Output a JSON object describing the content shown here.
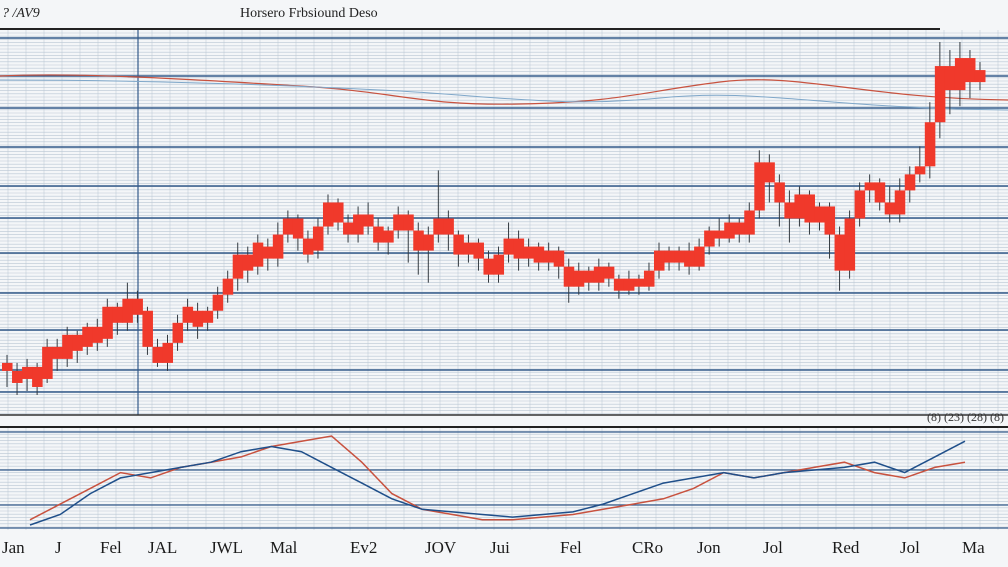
{
  "header": {
    "corner_label": "? /AV9",
    "title": "Horsero Frbsiound Deso"
  },
  "readout": "(8) (23) (28) (8)",
  "colors": {
    "background": "#f4f6f8",
    "grid": "#b9c6d3",
    "rule": "#355b8a",
    "candle": "#f0392b",
    "wick": "#333a40",
    "ma_red": "#c8523f",
    "ma_blue": "#1f4f8a"
  },
  "chart_data": [
    {
      "type": "candlestick",
      "title": "Horsero Frbsiound Deso",
      "grid": true,
      "y_axis_labels": false,
      "candles": [
        [
          10,
          8,
          4,
          12
        ],
        [
          8,
          5,
          2,
          10
        ],
        [
          6,
          9,
          3,
          11
        ],
        [
          9,
          4,
          2,
          10
        ],
        [
          6,
          14,
          5,
          16
        ],
        [
          14,
          11,
          8,
          16
        ],
        [
          11,
          17,
          9,
          19
        ],
        [
          17,
          13,
          10,
          18
        ],
        [
          14,
          19,
          12,
          20
        ],
        [
          19,
          15,
          13,
          21
        ],
        [
          16,
          24,
          14,
          26
        ],
        [
          24,
          20,
          17,
          25
        ],
        [
          20,
          26,
          18,
          30
        ],
        [
          26,
          22,
          20,
          28
        ],
        [
          23,
          14,
          12,
          24
        ],
        [
          14,
          10,
          9,
          16
        ],
        [
          10,
          15,
          8,
          17
        ],
        [
          15,
          20,
          13,
          22
        ],
        [
          20,
          24,
          18,
          26
        ],
        [
          23,
          19,
          16,
          25
        ],
        [
          20,
          23,
          18,
          24
        ],
        [
          23,
          27,
          21,
          29
        ],
        [
          27,
          31,
          25,
          33
        ],
        [
          31,
          37,
          28,
          40
        ],
        [
          37,
          33,
          30,
          39
        ],
        [
          34,
          40,
          32,
          42
        ],
        [
          39,
          36,
          33,
          41
        ],
        [
          36,
          42,
          34,
          45
        ],
        [
          42,
          46,
          40,
          48
        ],
        [
          46,
          41,
          38,
          47
        ],
        [
          41,
          37,
          35,
          43
        ],
        [
          38,
          44,
          36,
          46
        ],
        [
          44,
          50,
          42,
          52
        ],
        [
          50,
          45,
          43,
          51
        ],
        [
          45,
          42,
          40,
          47
        ],
        [
          42,
          47,
          40,
          49
        ],
        [
          47,
          44,
          42,
          50
        ],
        [
          44,
          40,
          38,
          46
        ],
        [
          40,
          43,
          37,
          44
        ],
        [
          43,
          47,
          41,
          49
        ],
        [
          47,
          43,
          35,
          48
        ],
        [
          43,
          38,
          32,
          45
        ],
        [
          38,
          42,
          30,
          44
        ],
        [
          42,
          46,
          40,
          58
        ],
        [
          46,
          42,
          38,
          48
        ],
        [
          42,
          37,
          34,
          43
        ],
        [
          37,
          40,
          35,
          42
        ],
        [
          40,
          36,
          33,
          41
        ],
        [
          36,
          32,
          30,
          38
        ],
        [
          32,
          37,
          30,
          39
        ],
        [
          37,
          41,
          35,
          45
        ],
        [
          41,
          36,
          33,
          43
        ],
        [
          36,
          39,
          34,
          41
        ],
        [
          39,
          35,
          33,
          40
        ],
        [
          35,
          38,
          33,
          40
        ],
        [
          38,
          34,
          31,
          39
        ],
        [
          34,
          29,
          25,
          36
        ],
        [
          29,
          33,
          27,
          35
        ],
        [
          33,
          30,
          28,
          34
        ],
        [
          30,
          34,
          28,
          36
        ],
        [
          34,
          31,
          29,
          35
        ],
        [
          31,
          28,
          26,
          32
        ],
        [
          28,
          31,
          27,
          33
        ],
        [
          31,
          29,
          27,
          32
        ],
        [
          29,
          33,
          28,
          35
        ],
        [
          33,
          38,
          31,
          40
        ],
        [
          38,
          35,
          33,
          39
        ],
        [
          35,
          38,
          33,
          39
        ],
        [
          38,
          34,
          32,
          40
        ],
        [
          34,
          39,
          33,
          41
        ],
        [
          39,
          43,
          37,
          44
        ],
        [
          43,
          41,
          39,
          46
        ],
        [
          41,
          45,
          40,
          47
        ],
        [
          45,
          42,
          40,
          46
        ],
        [
          42,
          48,
          40,
          50
        ],
        [
          48,
          60,
          46,
          63
        ],
        [
          60,
          55,
          50,
          62
        ],
        [
          55,
          50,
          44,
          57
        ],
        [
          50,
          46,
          40,
          53
        ],
        [
          46,
          52,
          44,
          54
        ],
        [
          52,
          45,
          42,
          53
        ],
        [
          45,
          49,
          43,
          50
        ],
        [
          49,
          42,
          36,
          50
        ],
        [
          42,
          33,
          28,
          44
        ],
        [
          33,
          46,
          31,
          48
        ],
        [
          46,
          53,
          44,
          55
        ],
        [
          53,
          55,
          50,
          57
        ],
        [
          55,
          50,
          48,
          56
        ],
        [
          50,
          47,
          45,
          54
        ],
        [
          47,
          53,
          45,
          56
        ],
        [
          53,
          57,
          50,
          59
        ],
        [
          57,
          59,
          55,
          64
        ],
        [
          59,
          70,
          56,
          75
        ],
        [
          70,
          84,
          66,
          90
        ],
        [
          84,
          78,
          72,
          88
        ],
        [
          78,
          86,
          74,
          90
        ],
        [
          86,
          80,
          76,
          88
        ],
        [
          80,
          83,
          78,
          85
        ]
      ]
    },
    {
      "type": "line",
      "grid": true,
      "x_labels": [
        "Jan",
        "J",
        "Fel",
        "JAL",
        "JWL",
        "Mal",
        "Ev2",
        "JOV",
        "Jui",
        "Fel",
        "CRo",
        "Jon",
        "Jol",
        "Red",
        "Jol",
        "Ma"
      ],
      "series": [
        {
          "color": "#c8523f",
          "values": [
            8,
            14,
            20,
            26,
            24,
            28,
            30,
            32,
            36,
            38,
            40,
            30,
            18,
            12,
            10,
            8,
            8,
            9,
            10,
            12,
            14,
            16,
            20,
            26,
            24,
            26,
            28,
            30,
            26,
            24,
            28,
            30
          ]
        },
        {
          "color": "#1f4f8a",
          "values": [
            6,
            10,
            18,
            24,
            26,
            28,
            30,
            34,
            36,
            34,
            28,
            22,
            16,
            12,
            11,
            10,
            9,
            10,
            11,
            14,
            18,
            22,
            24,
            26,
            24,
            26,
            27,
            28,
            30,
            26,
            32,
            38
          ]
        }
      ]
    }
  ]
}
